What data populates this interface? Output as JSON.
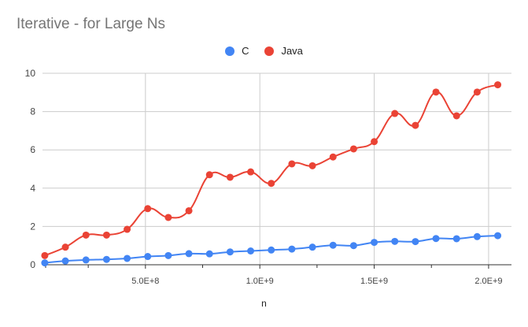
{
  "chart_data": {
    "type": "line",
    "title": "Iterative - for Large Ns",
    "xlabel": "n",
    "ylabel": "",
    "xlim": [
      50000000,
      2100000000
    ],
    "ylim": [
      0,
      10
    ],
    "y_ticks": [
      0,
      2,
      4,
      6,
      8,
      10
    ],
    "y_tick_labels": [
      "0",
      "2",
      "4",
      "6",
      "8",
      "10"
    ],
    "x_ticks": [
      500000000,
      1000000000,
      1500000000,
      2000000000
    ],
    "x_tick_labels": [
      "5.0E+8",
      "1.0E+9",
      "1.5E+9",
      "2.0E+9"
    ],
    "grid": true,
    "legend_position": "top",
    "x": [
      60000000,
      150000000,
      240000000,
      330000000,
      420000000,
      510000000,
      600000000,
      690000000,
      780000000,
      870000000,
      960000000,
      1050000000,
      1140000000,
      1230000000,
      1320000000,
      1410000000,
      1500000000,
      1590000000,
      1680000000,
      1770000000,
      1860000000,
      1950000000,
      2040000000
    ],
    "series": [
      {
        "name": "C",
        "color": "#4285f4",
        "values": [
          0.1,
          0.2,
          0.25,
          0.28,
          0.33,
          0.43,
          0.48,
          0.58,
          0.57,
          0.67,
          0.72,
          0.77,
          0.82,
          0.92,
          1.02,
          1.0,
          1.17,
          1.22,
          1.21,
          1.37,
          1.36,
          1.47,
          1.52
        ]
      },
      {
        "name": "Java",
        "color": "#ea4335",
        "values": [
          0.48,
          0.92,
          1.55,
          1.55,
          1.85,
          2.93,
          2.47,
          2.82,
          4.7,
          4.57,
          4.85,
          4.25,
          5.27,
          5.17,
          5.63,
          6.05,
          6.43,
          7.9,
          7.28,
          9.02,
          7.78,
          9.02,
          9.4
        ]
      }
    ]
  }
}
